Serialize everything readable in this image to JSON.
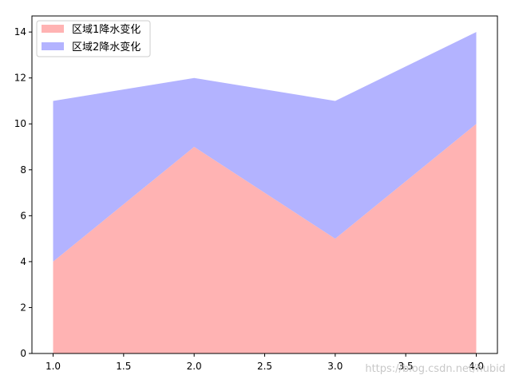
{
  "chart_data": {
    "type": "area",
    "stacked": true,
    "x": [
      1.0,
      2.0,
      3.0,
      4.0
    ],
    "series": [
      {
        "name": "区域1降水变化",
        "values": [
          4,
          9,
          5,
          10
        ],
        "color": "#ffb3b3"
      },
      {
        "name": "区域2降水变化",
        "values": [
          7,
          3,
          6,
          4
        ],
        "color": "#b3b3ff"
      }
    ],
    "xlim": [
      0.85,
      4.15
    ],
    "ylim": [
      0,
      14.7
    ],
    "xticks": [
      "1.0",
      "1.5",
      "2.0",
      "2.5",
      "3.0",
      "3.5",
      "4.0"
    ],
    "yticks": [
      "0",
      "2",
      "4",
      "6",
      "8",
      "10",
      "12",
      "14"
    ],
    "legend_position": "top-left",
    "grid": false
  },
  "watermark": "https://blog.csdn.net/hubid"
}
